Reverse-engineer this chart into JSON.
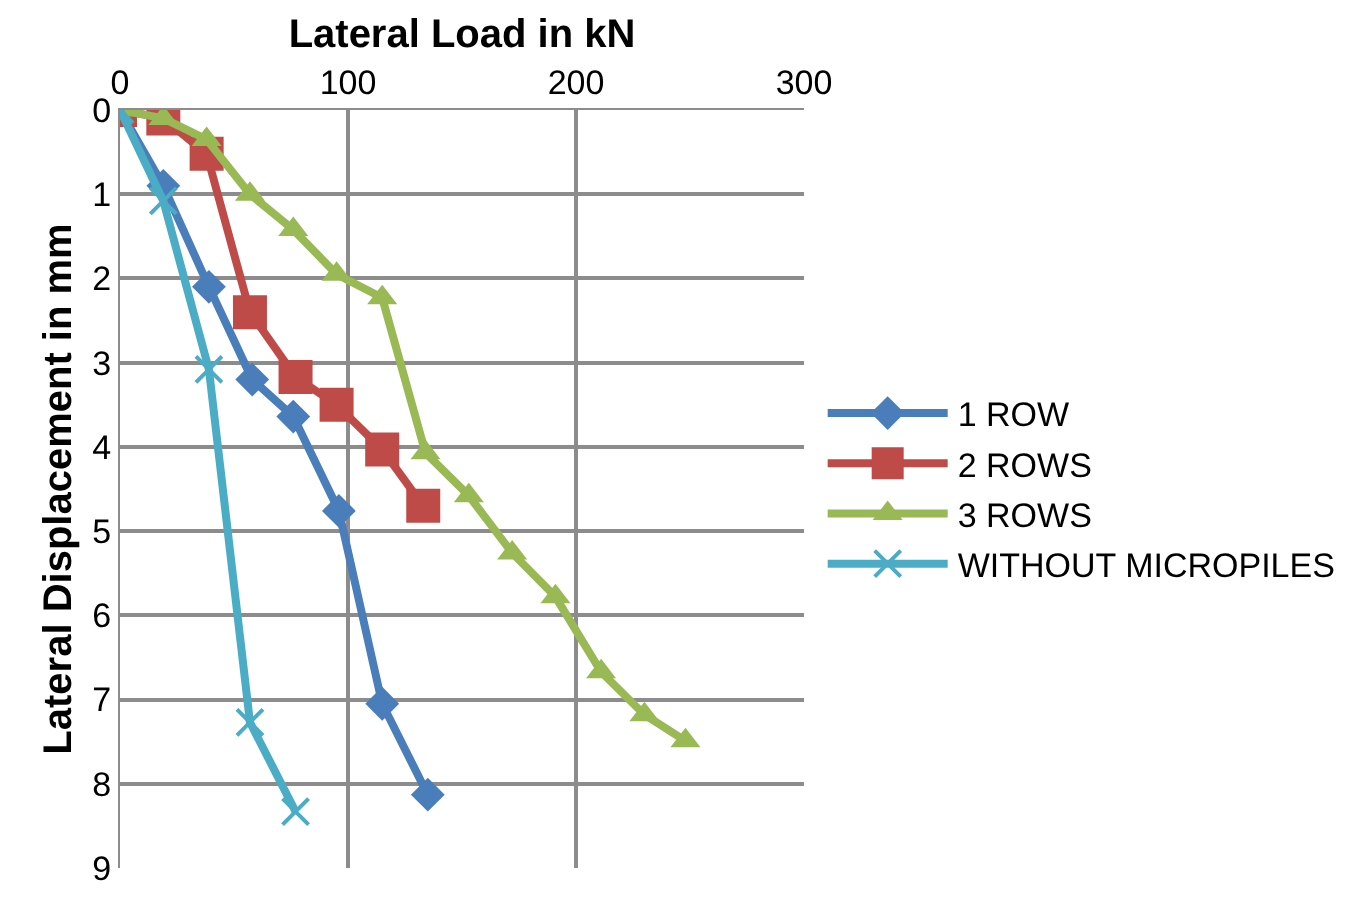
{
  "chart_data": {
    "type": "line",
    "xlabel": "Lateral Load in kN",
    "ylabel": "Lateral Displacement in mm",
    "xlim": [
      0,
      300
    ],
    "xticks": [
      0,
      100,
      200,
      300
    ],
    "ylim": [
      9,
      0
    ],
    "yticks": [
      0,
      1,
      2,
      3,
      4,
      5,
      6,
      7,
      8,
      9
    ],
    "grid": true,
    "legend": "right",
    "line_style": "solid",
    "series": [
      {
        "name": "1 ROW",
        "color": "#4a7ebb",
        "marker": "diamond",
        "x": [
          0,
          19,
          39,
          58,
          76,
          96,
          115,
          135
        ],
        "values": [
          0,
          0.9,
          2.1,
          3.2,
          3.64,
          4.76,
          7.05,
          8.13
        ]
      },
      {
        "name": "2 ROWS",
        "color": "#be4b48",
        "marker": "square",
        "x": [
          0,
          19,
          38,
          57,
          77,
          95,
          115,
          133
        ],
        "values": [
          0,
          0.1,
          0.52,
          2.4,
          3.17,
          3.5,
          4.03,
          4.7
        ]
      },
      {
        "name": "3 ROWS",
        "color": "#98b954",
        "marker": "triangle",
        "x": [
          0,
          19,
          38,
          57,
          76,
          95,
          115,
          134,
          153,
          172,
          191,
          211,
          230,
          248
        ],
        "values": [
          0,
          0.1,
          0.35,
          1.0,
          1.42,
          1.95,
          2.23,
          4.07,
          4.58,
          5.26,
          5.78,
          6.67,
          7.18,
          7.49
        ]
      },
      {
        "name": "WITHOUT MICROPILES",
        "color": "#4bacc6",
        "marker": "cross",
        "x": [
          0,
          19,
          39,
          57,
          77
        ],
        "values": [
          0,
          1.08,
          3.08,
          7.27,
          8.33
        ]
      }
    ]
  }
}
